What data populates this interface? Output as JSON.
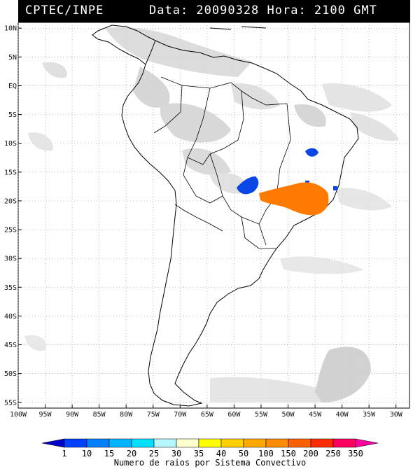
{
  "header": {
    "agency": "CPTEC/INPE",
    "stamp": "Data: 20090328 Hora: 2100 GMT"
  },
  "axes": {
    "lat_labels": [
      "10N",
      "5N",
      "EQ",
      "5S",
      "10S",
      "15S",
      "20S",
      "25S",
      "30S",
      "35S",
      "40S",
      "45S",
      "50S",
      "55S"
    ],
    "lon_labels": [
      "100W",
      "95W",
      "90W",
      "85W",
      "80W",
      "75W",
      "70W",
      "65W",
      "60W",
      "55W",
      "50W",
      "45W",
      "40W",
      "35W",
      "30W"
    ],
    "lat_range": [
      11,
      -56
    ],
    "lon_range": [
      -100,
      -27.5
    ],
    "grid": "dotted"
  },
  "colorbar": {
    "title": "Numero de raios por Sistema Convectivo",
    "labels": [
      "1",
      "10",
      "15",
      "20",
      "25",
      "30",
      "35",
      "40",
      "50",
      "100",
      "150",
      "200",
      "250",
      "350"
    ],
    "colors": [
      "#0000cc",
      "#0040ff",
      "#0080ff",
      "#00b4ff",
      "#00e0ff",
      "#b8f6ff",
      "#ffffd0",
      "#ffff00",
      "#ffd000",
      "#ffa800",
      "#ff8c00",
      "#ff6000",
      "#ff2a00",
      "#ff0060",
      "#ff00a0"
    ]
  },
  "colors": {
    "cloud": "#c8c8c8",
    "cloud_light": "#dedede",
    "coast": "#000000",
    "blue_systems": "#0a46e6",
    "orange_systems": "#ff7a00"
  }
}
